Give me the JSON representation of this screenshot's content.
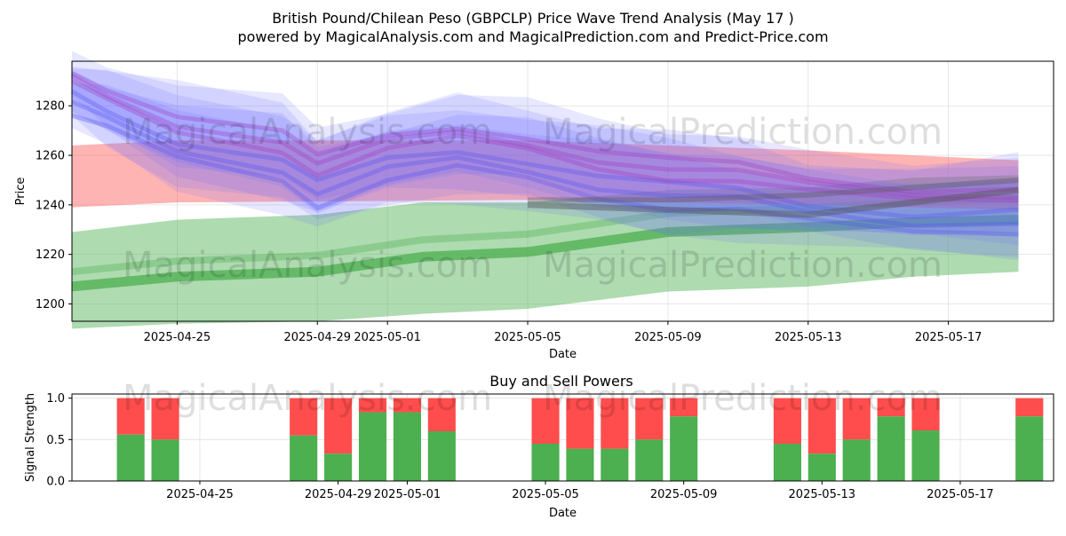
{
  "title": "British Pound/Chilean Peso (GBPCLP) Price Wave Trend Analysis (May 17 )",
  "subtitle": "powered by MagicalAnalysis.com and MagicalPrediction.com and Predict-Price.com",
  "watermarks": [
    "MagicalAnalysis.com",
    "MagicalPrediction.com"
  ],
  "colors": {
    "blue": "#6b6bff",
    "red": "#ff4d4d",
    "green": "#4caf50",
    "grid": "#e0e0e0"
  },
  "chart_data": [
    {
      "type": "area",
      "xlabel": "Date",
      "ylabel": "Price",
      "xlim": [
        "2025-04-22",
        "2025-05-20"
      ],
      "ylim": [
        1193,
        1298
      ],
      "yticks": [
        1200,
        1220,
        1240,
        1260,
        1280
      ],
      "xticks": [
        "2025-04-25",
        "2025-04-29",
        "2025-05-01",
        "2025-05-05",
        "2025-05-09",
        "2025-05-13",
        "2025-05-17"
      ],
      "grid": true,
      "bands": {
        "red": {
          "x": [
            "2025-04-22",
            "2025-04-25",
            "2025-05-05",
            "2025-05-13",
            "2025-05-19"
          ],
          "upper": [
            1264,
            1266,
            1266,
            1262,
            1258
          ],
          "lower": [
            1239,
            1241,
            1242,
            1240,
            1238
          ]
        },
        "green": {
          "x": [
            "2025-04-22",
            "2025-04-25",
            "2025-04-29",
            "2025-05-02",
            "2025-05-05",
            "2025-05-09",
            "2025-05-13",
            "2025-05-16",
            "2025-05-19"
          ],
          "upper": [
            1229,
            1234,
            1236,
            1241,
            1241,
            1246,
            1247,
            1251,
            1252
          ],
          "center": [
            1207,
            1211,
            1213,
            1219,
            1221,
            1229,
            1231,
            1233,
            1234
          ],
          "lower": [
            1190,
            1192,
            1193,
            1196,
            1198,
            1205,
            1207,
            1211,
            1213
          ]
        },
        "blue": {
          "x": [
            "2025-04-22",
            "2025-04-23",
            "2025-04-25",
            "2025-04-28",
            "2025-04-29",
            "2025-05-01",
            "2025-05-03",
            "2025-05-05",
            "2025-05-07",
            "2025-05-09",
            "2025-05-11",
            "2025-05-13",
            "2025-05-16",
            "2025-05-19"
          ],
          "upper": [
            1295,
            1292,
            1285,
            1278,
            1265,
            1274,
            1280,
            1276,
            1270,
            1266,
            1262,
            1255,
            1252,
            1256
          ],
          "lower": [
            1277,
            1268,
            1252,
            1244,
            1236,
            1245,
            1248,
            1245,
            1238,
            1233,
            1233,
            1230,
            1226,
            1224
          ]
        }
      }
    },
    {
      "type": "bar",
      "title": "Buy and Sell Powers",
      "xlabel": "Date",
      "ylabel": "Signal Strength",
      "ylim": [
        0,
        1.05
      ],
      "yticks": [
        0.0,
        0.5,
        1.0
      ],
      "xticks": [
        "2025-04-25",
        "2025-04-29",
        "2025-05-01",
        "2025-05-05",
        "2025-05-09",
        "2025-05-13",
        "2025-05-17"
      ],
      "grid": true,
      "series": [
        {
          "name": "Buy",
          "color": "#4caf50"
        },
        {
          "name": "Sell",
          "color": "#ff4d4d"
        }
      ],
      "bars": [
        {
          "date": "2025-04-23",
          "buy": 0.56
        },
        {
          "date": "2025-04-24",
          "buy": 0.5
        },
        {
          "date": "2025-04-28",
          "buy": 0.55
        },
        {
          "date": "2025-04-29",
          "buy": 0.33
        },
        {
          "date": "2025-04-30",
          "buy": 0.83
        },
        {
          "date": "2025-05-01",
          "buy": 0.83
        },
        {
          "date": "2025-05-02",
          "buy": 0.6
        },
        {
          "date": "2025-05-05",
          "buy": 0.45
        },
        {
          "date": "2025-05-06",
          "buy": 0.39
        },
        {
          "date": "2025-05-07",
          "buy": 0.39
        },
        {
          "date": "2025-05-08",
          "buy": 0.5
        },
        {
          "date": "2025-05-09",
          "buy": 0.78
        },
        {
          "date": "2025-05-12",
          "buy": 0.45
        },
        {
          "date": "2025-05-13",
          "buy": 0.33
        },
        {
          "date": "2025-05-14",
          "buy": 0.5
        },
        {
          "date": "2025-05-15",
          "buy": 0.78
        },
        {
          "date": "2025-05-16",
          "buy": 0.61
        },
        {
          "date": "2025-05-19",
          "buy": 0.78
        }
      ]
    }
  ]
}
